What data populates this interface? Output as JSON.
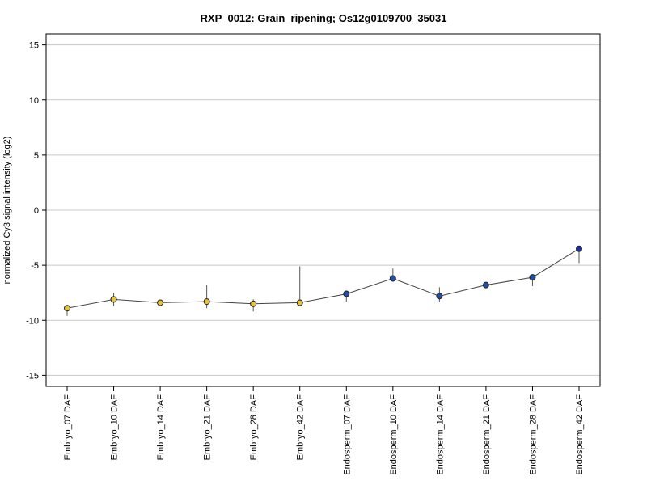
{
  "chart_data": {
    "type": "line",
    "title": "RXP_0012: Grain_ripening; Os12g0109700_35031",
    "xlabel": "",
    "ylabel": "normalized Cy3 signal intensity (log2)",
    "ylim": [
      -16,
      16
    ],
    "yticks": [
      -15,
      -10,
      -5,
      0,
      5,
      10,
      15
    ],
    "grid": true,
    "categories": [
      "Embryo_07 DAF",
      "Embryo_10 DAF",
      "Embryo_14 DAF",
      "Embryo_21 DAF",
      "Embryo_28 DAF",
      "Embryo_42 DAF",
      "Endosperm_07 DAF",
      "Endosperm_10 DAF",
      "Endosperm_14 DAF",
      "Endosperm_21 DAF",
      "Endosperm_28 DAF",
      "Endosperm_42 DAF"
    ],
    "values": [
      -8.9,
      -8.1,
      -8.4,
      -8.3,
      -8.5,
      -8.4,
      -7.6,
      -6.2,
      -7.8,
      -6.8,
      -6.1,
      -3.5
    ],
    "error_low": [
      -9.6,
      -8.7,
      -8.6,
      -8.9,
      -9.2,
      -8.6,
      -8.3,
      -6.3,
      -8.3,
      -6.9,
      -6.9,
      -4.8
    ],
    "error_high": [
      -8.8,
      -7.5,
      -8.3,
      -6.8,
      -8.1,
      -5.1,
      -7.3,
      -5.3,
      -7.0,
      -6.7,
      -6.0,
      -3.3
    ],
    "point_colors": [
      "#e8c33a",
      "#e8c33a",
      "#e8c33a",
      "#e8c33a",
      "#e8c33a",
      "#e8c33a",
      "#1f4fa8",
      "#1f4fa8",
      "#1f4fa8",
      "#1f4fa8",
      "#1f4fa8",
      "#1a2fa0"
    ]
  }
}
